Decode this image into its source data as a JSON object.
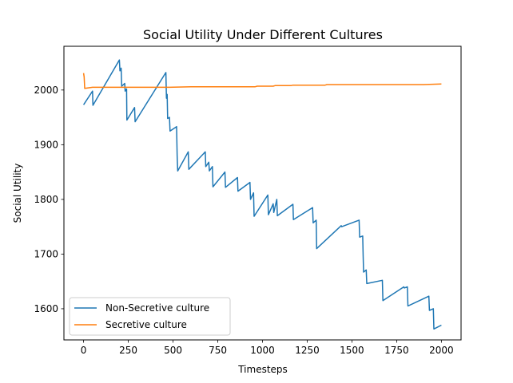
{
  "chart_data": {
    "type": "line",
    "title": "Social Utility Under Different Cultures",
    "xlabel": "Timesteps",
    "ylabel": "Social Utility",
    "xlim": [
      -110,
      2110
    ],
    "ylim": [
      1543,
      2080
    ],
    "xticks": [
      0,
      250,
      500,
      750,
      1000,
      1250,
      1500,
      1750,
      2000
    ],
    "yticks": [
      1600,
      1700,
      1800,
      1900,
      2000
    ],
    "grid": false,
    "legend_position": "lower-left",
    "series": [
      {
        "name": "Non-Secretive culture",
        "color": "#1f77b4",
        "points": [
          [
            0,
            1973
          ],
          [
            50,
            1998
          ],
          [
            52,
            1972
          ],
          [
            200,
            2055
          ],
          [
            203,
            2035
          ],
          [
            210,
            2040
          ],
          [
            213,
            2007
          ],
          [
            230,
            2012
          ],
          [
            232,
            1998
          ],
          [
            240,
            2002
          ],
          [
            242,
            1945
          ],
          [
            285,
            1968
          ],
          [
            288,
            1942
          ],
          [
            460,
            2032
          ],
          [
            463,
            1985
          ],
          [
            467,
            1992
          ],
          [
            470,
            1948
          ],
          [
            480,
            1950
          ],
          [
            483,
            1925
          ],
          [
            520,
            1933
          ],
          [
            523,
            1880
          ],
          [
            526,
            1852
          ],
          [
            585,
            1887
          ],
          [
            588,
            1855
          ],
          [
            680,
            1887
          ],
          [
            683,
            1860
          ],
          [
            700,
            1868
          ],
          [
            703,
            1852
          ],
          [
            720,
            1860
          ],
          [
            723,
            1823
          ],
          [
            790,
            1850
          ],
          [
            793,
            1822
          ],
          [
            860,
            1840
          ],
          [
            863,
            1815
          ],
          [
            930,
            1831
          ],
          [
            933,
            1800
          ],
          [
            950,
            1812
          ],
          [
            953,
            1769
          ],
          [
            1030,
            1808
          ],
          [
            1033,
            1772
          ],
          [
            1060,
            1792
          ],
          [
            1063,
            1776
          ],
          [
            1080,
            1800
          ],
          [
            1083,
            1770
          ],
          [
            1170,
            1791
          ],
          [
            1173,
            1763
          ],
          [
            1280,
            1785
          ],
          [
            1283,
            1757
          ],
          [
            1300,
            1762
          ],
          [
            1303,
            1710
          ],
          [
            1440,
            1752
          ],
          [
            1443,
            1750
          ],
          [
            1540,
            1762
          ],
          [
            1543,
            1731
          ],
          [
            1560,
            1733
          ],
          [
            1563,
            1695
          ],
          [
            1565,
            1667
          ],
          [
            1580,
            1671
          ],
          [
            1583,
            1646
          ],
          [
            1670,
            1652
          ],
          [
            1673,
            1615
          ],
          [
            1790,
            1640
          ],
          [
            1793,
            1638
          ],
          [
            1810,
            1640
          ],
          [
            1813,
            1605
          ],
          [
            1930,
            1623
          ],
          [
            1933,
            1597
          ],
          [
            1955,
            1600
          ],
          [
            1958,
            1563
          ],
          [
            2000,
            1570
          ]
        ]
      },
      {
        "name": "Secretive culture",
        "color": "#ff7f0e",
        "points": [
          [
            0,
            2031
          ],
          [
            3,
            2024
          ],
          [
            6,
            2003
          ],
          [
            50,
            2005
          ],
          [
            150,
            2005
          ],
          [
            480,
            2005
          ],
          [
            600,
            2006
          ],
          [
            960,
            2006
          ],
          [
            970,
            2007
          ],
          [
            1060,
            2007
          ],
          [
            1070,
            2008
          ],
          [
            1160,
            2008
          ],
          [
            1170,
            2009
          ],
          [
            1350,
            2009
          ],
          [
            1360,
            2010
          ],
          [
            1900,
            2010
          ],
          [
            2000,
            2011
          ]
        ]
      }
    ]
  }
}
